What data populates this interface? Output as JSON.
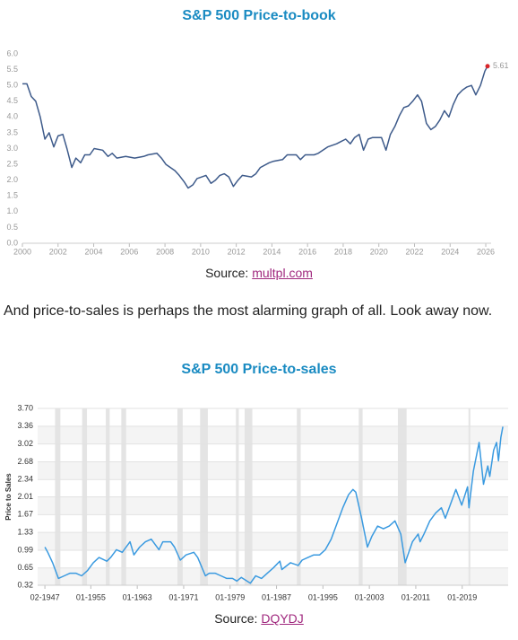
{
  "chart_data": [
    {
      "type": "line",
      "title": "S&P 500 Price-to-book",
      "source_prefix": "Source:",
      "source": "multpl.com",
      "xlim": [
        2000,
        2026.3
      ],
      "xticks": [
        2000,
        2002,
        2004,
        2006,
        2008,
        2010,
        2012,
        2014,
        2016,
        2018,
        2020,
        2022,
        2024,
        2026
      ],
      "ylim": [
        0,
        6
      ],
      "yticks": [
        {
          "value": 0,
          "label": "0.0"
        },
        0.5,
        {
          "value": 1,
          "label": "1.0"
        },
        1.5,
        {
          "value": 2,
          "label": "2.0"
        },
        2.5,
        {
          "value": 3,
          "label": "3.0"
        },
        3.5,
        {
          "value": 4,
          "label": "4.0"
        },
        4.5,
        {
          "value": 5,
          "label": "5.0"
        },
        5.5,
        {
          "value": 6,
          "label": "6.0"
        }
      ],
      "grid": false,
      "highlight_last": true,
      "highlight_color": "#d9252a",
      "series": [
        {
          "name": "Price-to-book",
          "color": "#3d5a8a",
          "x": [
            2000,
            2000.25,
            2000.5,
            2000.75,
            2001,
            2001.26,
            2001.5,
            2001.76,
            2002,
            2002.27,
            2002.5,
            2002.77,
            2003,
            2003.27,
            2003.5,
            2003.78,
            2004.03,
            2004.5,
            2004.8,
            2005.04,
            2005.3,
            2005.8,
            2006.3,
            2006.8,
            2007.05,
            2007.55,
            2007.8,
            2008.05,
            2008.56,
            2008.8,
            2009.07,
            2009.3,
            2009.57,
            2009.8,
            2010.3,
            2010.58,
            2010.83,
            2011.08,
            2011.33,
            2011.58,
            2011.84,
            2012.1,
            2012.34,
            2012.85,
            2013.1,
            2013.35,
            2013.85,
            2014.1,
            2014.6,
            2014.86,
            2015.37,
            2015.6,
            2015.87,
            2016.37,
            2016.6,
            2017.13,
            2017.63,
            2018.14,
            2018.4,
            2018.64,
            2018.9,
            2019.14,
            2019.4,
            2019.65,
            2020.15,
            2020.4,
            2020.65,
            2020.9,
            2021.16,
            2021.4,
            2021.66,
            2021.9,
            2022.17,
            2022.4,
            2022.67,
            2022.92,
            2023.17,
            2023.42,
            2023.68,
            2023.93,
            2024.18,
            2024.43,
            2024.69,
            2024.94,
            2025.2,
            2025.44,
            2025.7,
            2025.95,
            2026.1
          ],
          "values": [
            5.05,
            5.05,
            4.65,
            4.5,
            4.0,
            3.3,
            3.5,
            3.05,
            3.4,
            3.45,
            3.0,
            2.4,
            2.7,
            2.55,
            2.8,
            2.8,
            3.0,
            2.95,
            2.75,
            2.85,
            2.7,
            2.75,
            2.7,
            2.75,
            2.8,
            2.85,
            2.7,
            2.5,
            2.3,
            2.15,
            1.95,
            1.75,
            1.85,
            2.05,
            2.15,
            1.9,
            2.0,
            2.15,
            2.2,
            2.1,
            1.8,
            2.0,
            2.15,
            2.1,
            2.2,
            2.4,
            2.55,
            2.6,
            2.65,
            2.8,
            2.8,
            2.65,
            2.8,
            2.8,
            2.85,
            3.05,
            3.15,
            3.3,
            3.15,
            3.35,
            3.45,
            2.95,
            3.3,
            3.35,
            3.35,
            2.95,
            3.45,
            3.7,
            4.05,
            4.3,
            4.35,
            4.5,
            4.7,
            4.5,
            3.8,
            3.6,
            3.7,
            3.9,
            4.2,
            4.0,
            4.4,
            4.7,
            4.85,
            4.95,
            5.0,
            4.7,
            5.0,
            5.45,
            5.61
          ]
        }
      ]
    },
    {
      "type": "line",
      "title": "S&P 500 Price-to-sales",
      "source_prefix": "Source:",
      "source": "DQYDJ",
      "y_label": "Price to Sales",
      "xlim": [
        "1945-11",
        "2026-12"
      ],
      "xticks": [
        {
          "value": "1947-02",
          "label": "02-1947"
        },
        {
          "value": "1955-01",
          "label": "01-1955"
        },
        {
          "value": "1963-01",
          "label": "01-1963"
        },
        {
          "value": "1971-01",
          "label": "01-1971"
        },
        {
          "value": "1979-01",
          "label": "01-1979"
        },
        {
          "value": "1987-01",
          "label": "01-1987"
        },
        {
          "value": "1995-01",
          "label": "01-1995"
        },
        {
          "value": "2003-01",
          "label": "01-2003"
        },
        {
          "value": "2011-01",
          "label": "01-2011"
        },
        {
          "value": "2019-01",
          "label": "01-2019"
        }
      ],
      "ylim": [
        0.32,
        3.7
      ],
      "yticks": [
        0.32,
        0.65,
        0.99,
        1.33,
        1.67,
        2.01,
        2.34,
        2.68,
        3.02,
        3.36,
        {
          "value": 3.7,
          "label": "3.70"
        }
      ],
      "grid": true,
      "shade_color": "#e4e4e4",
      "shaded_ranges": [
        [
          "1948-11",
          "1949-10"
        ],
        [
          "1953-07",
          "1954-05"
        ],
        [
          "1957-08",
          "1958-04"
        ],
        [
          "1960-04",
          "1961-02"
        ],
        [
          "1969-12",
          "1970-11"
        ],
        [
          "1973-11",
          "1975-03"
        ],
        [
          "1980-01",
          "1980-07"
        ],
        [
          "1981-07",
          "1982-11"
        ],
        [
          "1990-07",
          "1991-03"
        ],
        [
          "2001-03",
          "2001-11"
        ],
        [
          "2007-12",
          "2009-06"
        ],
        [
          "2020-02",
          "2020-04"
        ]
      ],
      "series": [
        {
          "name": "Price to Sales",
          "color": "#3a9ae0",
          "x": [
            "1947-02",
            "1947-08",
            "1948-06",
            "1949-06",
            "1950-06",
            "1951-06",
            "1952-06",
            "1953-06",
            "1954-06",
            "1955-06",
            "1956-06",
            "1957-10",
            "1958-06",
            "1959-06",
            "1960-06",
            "1961-10",
            "1962-06",
            "1963-06",
            "1964-06",
            "1965-06",
            "1966-10",
            "1967-06",
            "1968-10",
            "1969-06",
            "1970-06",
            "1971-06",
            "1972-10",
            "1973-06",
            "1974-10",
            "1975-06",
            "1976-06",
            "1977-06",
            "1978-06",
            "1979-06",
            "1980-03",
            "1980-12",
            "1982-07",
            "1983-06",
            "1984-06",
            "1985-06",
            "1986-06",
            "1987-08",
            "1987-12",
            "1989-06",
            "1990-10",
            "1991-06",
            "1992-06",
            "1993-06",
            "1994-06",
            "1995-06",
            "1996-06",
            "1997-06",
            "1998-06",
            "1999-06",
            "2000-03",
            "2000-09",
            "2001-09",
            "2002-09",
            "2003-06",
            "2004-06",
            "2005-06",
            "2006-06",
            "2007-06",
            "2008-06",
            "2009-03",
            "2010-06",
            "2011-06",
            "2011-10",
            "2012-06",
            "2013-06",
            "2014-06",
            "2015-06",
            "2016-02",
            "2016-10",
            "2017-12",
            "2018-12",
            "2019-12",
            "2020-03",
            "2020-12",
            "2021-12",
            "2022-09",
            "2023-06",
            "2023-10",
            "2024-06",
            "2024-12",
            "2025-04",
            "2025-09",
            "2026-01"
          ],
          "values": [
            1.05,
            0.95,
            0.75,
            0.45,
            0.5,
            0.55,
            0.55,
            0.5,
            0.6,
            0.75,
            0.85,
            0.78,
            0.85,
            1.0,
            0.95,
            1.15,
            0.9,
            1.05,
            1.15,
            1.2,
            1.0,
            1.15,
            1.15,
            1.05,
            0.8,
            0.9,
            0.95,
            0.85,
            0.5,
            0.55,
            0.55,
            0.5,
            0.45,
            0.45,
            0.4,
            0.47,
            0.36,
            0.5,
            0.45,
            0.55,
            0.65,
            0.78,
            0.62,
            0.75,
            0.7,
            0.8,
            0.85,
            0.9,
            0.9,
            1.0,
            1.2,
            1.5,
            1.8,
            2.05,
            2.15,
            2.1,
            1.6,
            1.05,
            1.25,
            1.45,
            1.4,
            1.45,
            1.55,
            1.3,
            0.75,
            1.15,
            1.3,
            1.15,
            1.3,
            1.55,
            1.7,
            1.8,
            1.6,
            1.8,
            2.15,
            1.85,
            2.2,
            1.8,
            2.5,
            3.05,
            2.25,
            2.6,
            2.4,
            2.9,
            3.05,
            2.7,
            3.15,
            3.35
          ]
        }
      ]
    }
  ],
  "paragraph": "And price-to-sales is perhaps the most alarming graph of all. Look away now."
}
